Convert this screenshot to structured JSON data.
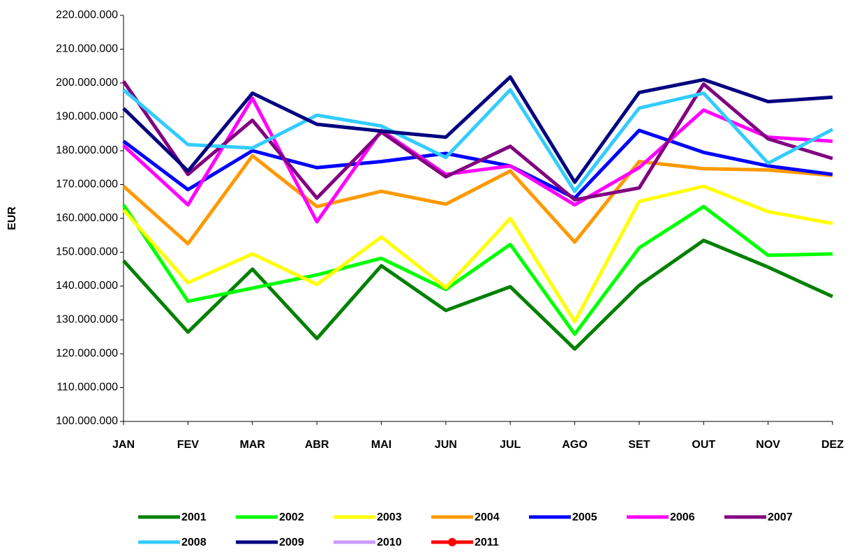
{
  "chart_data": {
    "type": "line",
    "y_label": "EUR",
    "categories": [
      "JAN",
      "FEV",
      "MAR",
      "ABR",
      "MAI",
      "JUN",
      "JUL",
      "AGO",
      "SET",
      "OUT",
      "NOV",
      "DEZ"
    ],
    "ylim": [
      100000000,
      220000000
    ],
    "yticks": [
      {
        "value": 100000000,
        "label": "100.000.000"
      },
      {
        "value": 110000000,
        "label": "110.000.000"
      },
      {
        "value": 120000000,
        "label": "120.000.000"
      },
      {
        "value": 130000000,
        "label": "130.000.000"
      },
      {
        "value": 140000000,
        "label": "140.000.000"
      },
      {
        "value": 150000000,
        "label": "150.000.000"
      },
      {
        "value": 160000000,
        "label": "160.000.000"
      },
      {
        "value": 170000000,
        "label": "170.000.000"
      },
      {
        "value": 180000000,
        "label": "180.000.000"
      },
      {
        "value": 190000000,
        "label": "190.000.000"
      },
      {
        "value": 200000000,
        "label": "200.000.000"
      },
      {
        "value": 210000000,
        "label": "210.000.000"
      },
      {
        "value": 220000000,
        "label": "220.000.000"
      }
    ],
    "grid": false,
    "legend": "bottom",
    "series": [
      {
        "name": "2001",
        "color": "#008000",
        "values": [
          147500000,
          126400000,
          145000000,
          124500000,
          146000000,
          132800000,
          139800000,
          121400000,
          140200000,
          153500000,
          145600000,
          136900000
        ]
      },
      {
        "name": "2002",
        "color": "#00ff00",
        "values": [
          164000000,
          135500000,
          139400000,
          143300000,
          148200000,
          139000000,
          152300000,
          125800000,
          151300000,
          163500000,
          149100000,
          149500000
        ]
      },
      {
        "name": "2003",
        "color": "#ffff00",
        "values": [
          162500000,
          141000000,
          149500000,
          140500000,
          154500000,
          139500000,
          160000000,
          129500000,
          165000000,
          169500000,
          162000000,
          158500000
        ]
      },
      {
        "name": "2004",
        "color": "#ff9900",
        "values": [
          169500000,
          152500000,
          178500000,
          163500000,
          168000000,
          164200000,
          174000000,
          153000000,
          176800000,
          174700000,
          174300000,
          172700000
        ]
      },
      {
        "name": "2005",
        "color": "#0000ff",
        "values": [
          182800000,
          168500000,
          180000000,
          175000000,
          176800000,
          179200000,
          175500000,
          166000000,
          186000000,
          179500000,
          175500000,
          173000000
        ]
      },
      {
        "name": "2006",
        "color": "#ff00ff",
        "values": [
          181500000,
          164000000,
          195500000,
          159000000,
          186000000,
          173000000,
          175500000,
          164000000,
          175000000,
          192000000,
          184000000,
          182800000
        ]
      },
      {
        "name": "2007",
        "color": "#800080",
        "values": [
          200500000,
          173000000,
          189000000,
          166000000,
          185500000,
          172300000,
          181300000,
          165500000,
          169000000,
          199700000,
          183500000,
          177700000
        ]
      },
      {
        "name": "2008",
        "color": "#33ccff",
        "values": [
          198000000,
          181800000,
          180800000,
          190500000,
          187300000,
          178000000,
          198000000,
          168000000,
          192600000,
          197000000,
          176300000,
          186300000
        ]
      },
      {
        "name": "2009",
        "color": "#000080",
        "values": [
          192500000,
          174000000,
          197000000,
          187800000,
          185800000,
          184000000,
          201800000,
          170700000,
          197200000,
          201000000,
          194500000,
          195800000
        ]
      },
      {
        "name": "2010",
        "color": "#cc99ff",
        "values": [
          null,
          null,
          null,
          null,
          null,
          null,
          null,
          null,
          null,
          null,
          null,
          null
        ]
      },
      {
        "name": "2011",
        "color": "#ff0000",
        "marker": "circle",
        "values": [
          null,
          null,
          null,
          null,
          null,
          null,
          null,
          null,
          null,
          null,
          null,
          null
        ]
      }
    ]
  }
}
